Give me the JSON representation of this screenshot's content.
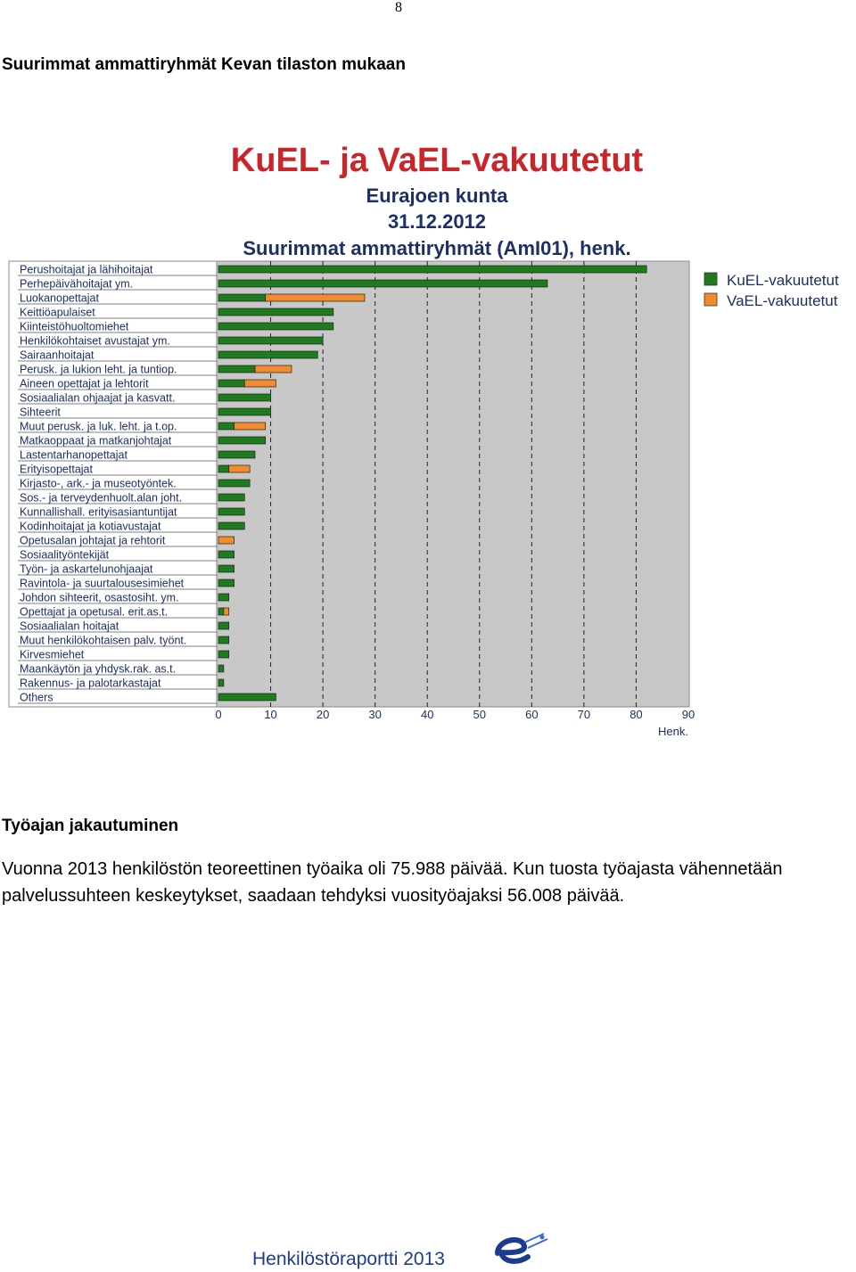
{
  "page_number": "8",
  "heading1": "Suurimmat ammattiryhmät Kevan tilaston mukaan",
  "heading2": "Työajan jakautuminen",
  "paragraph": "Vuonna 2013 henkilöstön teoreettinen työaika oli 75.988 päivää. Kun tuosta työajasta vähennetään palvelussuhteen keskeytykset, saadaan tehdyksi vuosityöajaksi 56.008 päivää.",
  "footer": "Henkilöstöraportti 2013",
  "chart_data": {
    "type": "bar",
    "orientation": "horizontal",
    "title": "KuEL- ja VaEL-vakuutetut",
    "subtitle_lines": [
      "Eurajoen kunta",
      "31.12.2012",
      "Suurimmat ammattiryhmät (AmI01), henk."
    ],
    "xlabel": "Henk.",
    "xlim": [
      0,
      90
    ],
    "xticks": [
      0,
      10,
      20,
      30,
      40,
      50,
      60,
      70,
      80,
      90
    ],
    "grid": "dashed vertical",
    "legend_position": "right",
    "colors": {
      "KuEL-vakuutetut": "#1e7b1e",
      "VaEL-vakuutetut": "#f28a2e",
      "plot_bg": "#c8c8c8"
    },
    "categories": [
      "Perushoitajat ja lähihoitajat",
      "Perhepäivähoitajat ym.",
      "Luokanopettajat",
      "Keittiöapulaiset",
      "Kiinteistöhuoltomiehet",
      "Henkilökohtaiset avustajat ym.",
      "Sairaanhoitajat",
      "Perusk. ja lukion leht. ja tuntiop.",
      "Aineen opettajat ja lehtorit",
      "Sosiaalialan ohjaajat ja kasvatt.",
      "Sihteerit",
      "Muut perusk. ja luk. leht. ja t.op.",
      "Matkaoppaat ja matkanjohtajat",
      "Lastentarhanopettajat",
      "Erityisopettajat",
      "Kirjasto-, ark.- ja museotyöntek.",
      "Sos.- ja terveydenhuolt.alan joht.",
      "Kunnallishall. erityisasiantuntijat",
      "Kodinhoitajat ja kotiavustajat",
      "Opetusalan johtajat ja rehtorit",
      "Sosiaalityöntekijät",
      "Työn- ja askartelunohjaajat",
      "Ravintola- ja suurtalousesimiehet",
      "Johdon sihteerit, osastosiht. ym.",
      "Opettajat ja opetusal. erit.as.t.",
      "Sosiaalialan hoitajat",
      "Muut henkilökohtaisen palv. työnt.",
      "Kirvesmiehet",
      "Maankäytön ja yhdysk.rak. as.t.",
      "Rakennus- ja palotarkastajat",
      "Others"
    ],
    "series": [
      {
        "name": "KuEL-vakuutetut",
        "values": [
          82,
          63,
          9,
          22,
          22,
          20,
          19,
          7,
          5,
          10,
          10,
          3,
          9,
          7,
          2,
          6,
          5,
          5,
          5,
          0,
          3,
          3,
          3,
          2,
          1,
          2,
          2,
          2,
          1,
          1,
          11
        ]
      },
      {
        "name": "VaEL-vakuutetut",
        "values": [
          0,
          0,
          19,
          0,
          0,
          0,
          0,
          7,
          6,
          0,
          0,
          6,
          0,
          0,
          4,
          0,
          0,
          0,
          0,
          3,
          0,
          0,
          0,
          0,
          1,
          0,
          0,
          0,
          0,
          0,
          0
        ]
      }
    ]
  }
}
